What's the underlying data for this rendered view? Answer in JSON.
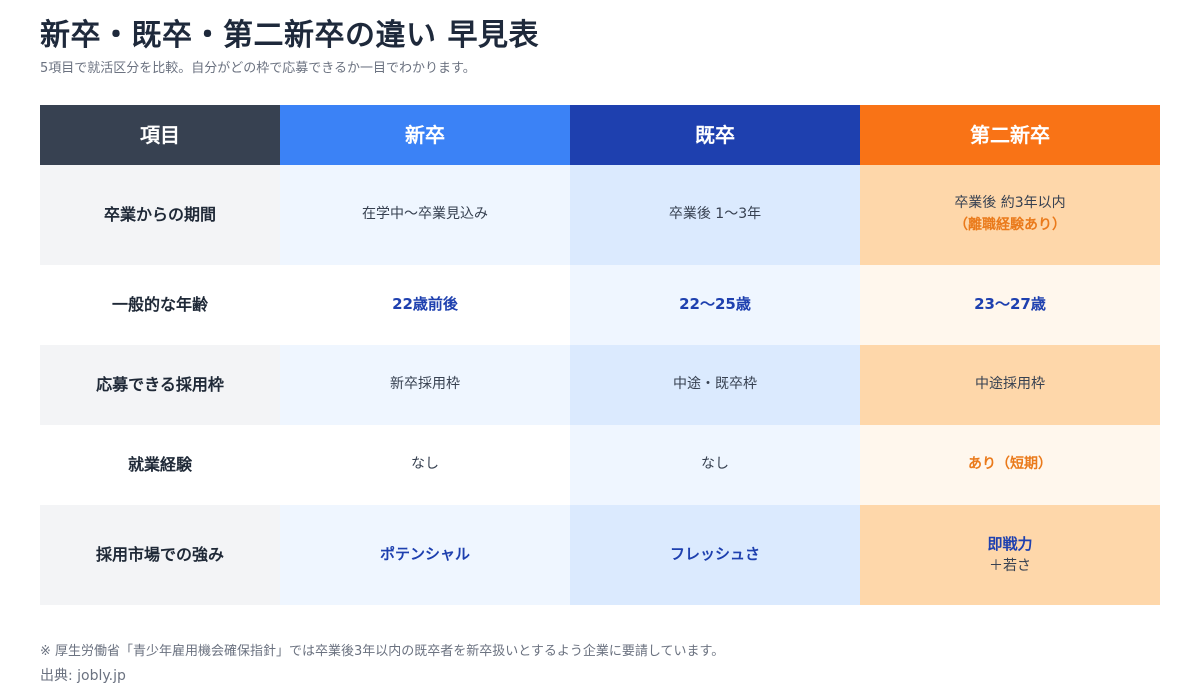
{
  "title": "新卒・既卒・第二新卒の違い 早見表",
  "subtitle": "5項目で就活区分を比較。自分がどの枠で応募できるか一目でわかります。",
  "table": {
    "headers": [
      "項目",
      "新卒",
      "既卒",
      "第二新卒"
    ],
    "rows": [
      {
        "label": "卒業からの期間",
        "shinsotsu": "在学中〜卒業見込み",
        "kisotsu": "卒業後 1〜3年",
        "daini": "卒業後 約3年以内",
        "daini_note": "（離職経験あり）"
      },
      {
        "label": "一般的な年齢",
        "shinsotsu": "22歳前後",
        "kisotsu": "22〜25歳",
        "daini": "23〜27歳"
      },
      {
        "label": "応募できる採用枠",
        "shinsotsu": "新卒採用枠",
        "kisotsu": "中途・既卒枠",
        "daini": "中途採用枠"
      },
      {
        "label": "就業経験",
        "shinsotsu": "なし",
        "kisotsu": "なし",
        "daini": "あり（短期）"
      },
      {
        "label": "採用市場での強み",
        "shinsotsu": "ポテンシャル",
        "kisotsu": "フレッシュさ",
        "daini": "即戦力",
        "daini_note": "＋若さ"
      }
    ]
  },
  "footnote": "※ 厚生労働省「青少年雇用機会確保指針」では卒業後3年以内の既卒者を新卒扱いとするよう企業に要請しています。",
  "source": "出典: jobly.jp",
  "colors": {
    "header_item": "#374151",
    "header_shinsotsu": "#3b82f6",
    "header_kisotsu": "#1e40af",
    "header_daini": "#f97316",
    "emphasis_blue": "#1e40af",
    "emphasis_orange": "#ea7a1b"
  }
}
